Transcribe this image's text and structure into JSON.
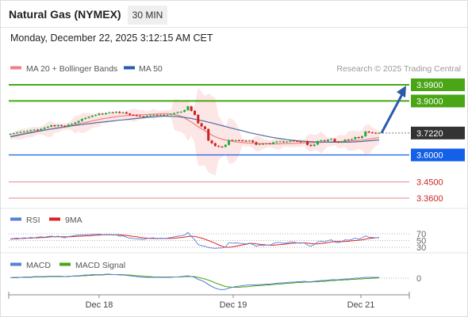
{
  "header": {
    "title": "Natural Gas (NYMEX)",
    "timeframe": "30 MIN",
    "datetime": "Monday, December 22, 2025 3:12:15 AM CET"
  },
  "legend": {
    "ma20_label": "MA 20 + Bollinger Bands",
    "ma50_label": "MA 50",
    "copyright": "Research © 2025 Trading Central",
    "rsi_label": "RSI",
    "rsi_ma_label": "9MA",
    "macd_label": "MACD",
    "macd_signal_label": "MACD Signal"
  },
  "colors": {
    "up": "#22aa44",
    "down": "#cc2222",
    "ma20": "#f08080",
    "ma50": "#4a6fa5",
    "bollinger_fill": "#fde3e3",
    "resistance": "#4aa616",
    "support": "#1560e8",
    "support_secondary": "#e58a8a",
    "current": "#333333",
    "arrow": "#2a5aa8",
    "rsi": "#5b7fd8",
    "rsi_ma": "#dd2222",
    "macd": "#5b7fd8",
    "macd_signal": "#4aa616"
  },
  "chart_data": [
    {
      "type": "candlestick",
      "title": "Natural Gas (NYMEX)",
      "timeframe": "30 MIN",
      "x_ticks": [
        "Dec 18",
        "Dec 19",
        "Dec 21"
      ],
      "ylim": [
        3.33,
        4.02
      ],
      "close": [
        3.717,
        3.721,
        3.725,
        3.728,
        3.731,
        3.733,
        3.738,
        3.741,
        3.738,
        3.745,
        3.752,
        3.757,
        3.765,
        3.76,
        3.766,
        3.762,
        3.757,
        3.769,
        3.773,
        3.78,
        3.789,
        3.8,
        3.806,
        3.812,
        3.818,
        3.822,
        3.83,
        3.826,
        3.833,
        3.837,
        3.835,
        3.84,
        3.834,
        3.837,
        3.83,
        3.823,
        3.821,
        3.817,
        3.815,
        3.812,
        3.818,
        3.821,
        3.823,
        3.819,
        3.823,
        3.822,
        3.824,
        3.828,
        3.833,
        3.838,
        3.84,
        3.849,
        3.87,
        3.845,
        3.823,
        3.776,
        3.758,
        3.744,
        3.68,
        3.665,
        3.65,
        3.646,
        3.645,
        3.656,
        3.683,
        3.68,
        3.682,
        3.681,
        3.679,
        3.677,
        3.68,
        3.671,
        3.657,
        3.662,
        3.661,
        3.664,
        3.662,
        3.67,
        3.675,
        3.675,
        3.672,
        3.674,
        3.68,
        3.678,
        3.675,
        3.673,
        3.677,
        3.656,
        3.65,
        3.658,
        3.677,
        3.681,
        3.677,
        3.685,
        3.689,
        3.673,
        3.67,
        3.674,
        3.685,
        3.684,
        3.688,
        3.699,
        3.694,
        3.704,
        3.73,
        3.725,
        3.723,
        3.722,
        3.722
      ],
      "ma20": [
        3.703,
        3.707,
        3.711,
        3.715,
        3.719,
        3.723,
        3.726,
        3.73,
        3.733,
        3.736,
        3.739,
        3.742,
        3.745,
        3.748,
        3.751,
        3.754,
        3.757,
        3.761,
        3.765,
        3.769,
        3.773,
        3.777,
        3.781,
        3.785,
        3.789,
        3.793,
        3.797,
        3.801,
        3.804,
        3.807,
        3.81,
        3.813,
        3.815,
        3.817,
        3.819,
        3.82,
        3.821,
        3.822,
        3.823,
        3.824,
        3.825,
        3.826,
        3.827,
        3.828,
        3.829,
        3.83,
        3.83,
        3.828,
        3.825,
        3.821,
        3.815,
        3.806,
        3.795,
        3.783,
        3.77,
        3.757,
        3.745,
        3.734,
        3.722,
        3.711,
        3.701,
        3.694,
        3.688,
        3.683,
        3.679,
        3.676,
        3.673,
        3.671,
        3.669,
        3.667,
        3.666,
        3.665,
        3.664,
        3.663,
        3.663,
        3.663,
        3.662,
        3.662,
        3.662,
        3.662,
        3.663,
        3.663,
        3.664,
        3.664,
        3.665,
        3.666,
        3.667,
        3.667,
        3.668,
        3.669,
        3.67,
        3.67,
        3.671,
        3.672,
        3.673,
        3.674,
        3.674,
        3.675,
        3.676,
        3.677,
        3.679,
        3.68,
        3.681,
        3.683,
        3.685,
        3.688,
        3.691,
        3.694,
        3.698
      ],
      "ma50": [
        3.7,
        3.704,
        3.708,
        3.712,
        3.716,
        3.72,
        3.723,
        3.727,
        3.731,
        3.734,
        3.738,
        3.741,
        3.744,
        3.747,
        3.75,
        3.753,
        3.756,
        3.759,
        3.762,
        3.764,
        3.767,
        3.769,
        3.772,
        3.774,
        3.776,
        3.779,
        3.781,
        3.783,
        3.785,
        3.787,
        3.789,
        3.791,
        3.793,
        3.795,
        3.797,
        3.799,
        3.801,
        3.803,
        3.805,
        3.807,
        3.809,
        3.811,
        3.812,
        3.813,
        3.814,
        3.815,
        3.815,
        3.815,
        3.814,
        3.813,
        3.811,
        3.809,
        3.806,
        3.803,
        3.799,
        3.795,
        3.791,
        3.787,
        3.782,
        3.778,
        3.773,
        3.768,
        3.763,
        3.758,
        3.753,
        3.748,
        3.743,
        3.739,
        3.734,
        3.729,
        3.724,
        3.72,
        3.716,
        3.712,
        3.708,
        3.704,
        3.7,
        3.697,
        3.694,
        3.691,
        3.688,
        3.685,
        3.683,
        3.681,
        3.679,
        3.677,
        3.676,
        3.675,
        3.674,
        3.673,
        3.673,
        3.672,
        3.672,
        3.671,
        3.671,
        3.671,
        3.671,
        3.671,
        3.671,
        3.671,
        3.672,
        3.673,
        3.674,
        3.675,
        3.677,
        3.679,
        3.68,
        3.682,
        3.684
      ],
      "levels": [
        {
          "value": 3.99,
          "label": "3.9900",
          "role": "resistance"
        },
        {
          "value": 3.9,
          "label": "3.9000",
          "role": "resistance"
        },
        {
          "value": 3.722,
          "label": "3.7220",
          "role": "current"
        },
        {
          "value": 3.6,
          "label": "3.6000",
          "role": "support"
        },
        {
          "value": 3.45,
          "label": "3.4500",
          "role": "support_secondary"
        },
        {
          "value": 3.36,
          "label": "3.3600",
          "role": "support_secondary"
        }
      ],
      "legend": [
        "MA 20 + Bollinger Bands",
        "MA 50"
      ]
    },
    {
      "type": "line",
      "title": "",
      "legend": [
        "RSI",
        "9MA"
      ],
      "y_ticks": [
        70,
        50,
        30
      ],
      "ylim": [
        20,
        80
      ],
      "series": [
        {
          "name": "RSI",
          "values": [
            55,
            56,
            57,
            56,
            58,
            57,
            59,
            58,
            60,
            61,
            60,
            62,
            63,
            61,
            63,
            60,
            58,
            62,
            63,
            65,
            66,
            67,
            67,
            68,
            68,
            68,
            69,
            67,
            68,
            68,
            66,
            67,
            63,
            64,
            60,
            57,
            56,
            55,
            54,
            53,
            56,
            57,
            58,
            55,
            57,
            56,
            57,
            59,
            61,
            63,
            64,
            66,
            74,
            62,
            52,
            38,
            35,
            33,
            29,
            28,
            27,
            28,
            28,
            31,
            44,
            42,
            43,
            42,
            41,
            40,
            42,
            38,
            33,
            36,
            35,
            37,
            36,
            41,
            44,
            44,
            42,
            43,
            46,
            45,
            43,
            42,
            44,
            36,
            33,
            38,
            46,
            48,
            46,
            50,
            52,
            45,
            44,
            46,
            52,
            51,
            53,
            57,
            54,
            58,
            64,
            60,
            59,
            58,
            58
          ]
        },
        {
          "name": "9MA",
          "values": [
            54,
            55,
            55,
            56,
            56,
            57,
            57,
            58,
            58,
            59,
            59,
            60,
            61,
            61,
            61,
            61,
            61,
            61,
            61,
            62,
            63,
            63,
            64,
            64,
            65,
            66,
            66,
            67,
            67,
            67,
            67,
            67,
            67,
            66,
            65,
            64,
            62,
            61,
            59,
            58,
            57,
            56,
            56,
            56,
            56,
            56,
            56,
            56,
            57,
            58,
            59,
            60,
            62,
            63,
            62,
            60,
            57,
            54,
            50,
            46,
            42,
            37,
            33,
            30,
            30,
            31,
            33,
            35,
            37,
            39,
            41,
            41,
            40,
            39,
            38,
            37,
            36,
            36,
            37,
            38,
            39,
            40,
            41,
            42,
            43,
            43,
            43,
            42,
            41,
            40,
            40,
            41,
            42,
            44,
            46,
            47,
            47,
            47,
            47,
            48,
            49,
            50,
            51,
            52,
            54,
            56,
            57,
            58,
            59
          ]
        }
      ]
    },
    {
      "type": "line",
      "title": "",
      "legend": [
        "MACD",
        "MACD Signal"
      ],
      "y_ticks": [
        0
      ],
      "ylim": [
        -0.035,
        0.012
      ],
      "series": [
        {
          "name": "MACD",
          "values": [
            0.001,
            0.002,
            0.002,
            0.002,
            0.003,
            0.003,
            0.003,
            0.004,
            0.004,
            0.004,
            0.004,
            0.005,
            0.005,
            0.005,
            0.005,
            0.005,
            0.004,
            0.005,
            0.005,
            0.006,
            0.006,
            0.007,
            0.008,
            0.008,
            0.009,
            0.009,
            0.009,
            0.009,
            0.01,
            0.01,
            0.009,
            0.009,
            0.008,
            0.008,
            0.007,
            0.006,
            0.005,
            0.004,
            0.003,
            0.002,
            0.002,
            0.002,
            0.002,
            0.002,
            0.002,
            0.002,
            0.002,
            0.002,
            0.003,
            0.003,
            0.004,
            0.005,
            0.006,
            0.004,
            0.002,
            -0.003,
            -0.006,
            -0.01,
            -0.016,
            -0.021,
            -0.025,
            -0.028,
            -0.029,
            -0.028,
            -0.025,
            -0.023,
            -0.021,
            -0.02,
            -0.019,
            -0.018,
            -0.017,
            -0.017,
            -0.017,
            -0.016,
            -0.016,
            -0.015,
            -0.015,
            -0.014,
            -0.013,
            -0.012,
            -0.012,
            -0.011,
            -0.01,
            -0.01,
            -0.009,
            -0.009,
            -0.008,
            -0.009,
            -0.009,
            -0.008,
            -0.007,
            -0.006,
            -0.006,
            -0.005,
            -0.004,
            -0.004,
            -0.004,
            -0.003,
            -0.002,
            -0.002,
            -0.001,
            0.0,
            0.0,
            0.001,
            0.002,
            0.002,
            0.002,
            0.002,
            0.002
          ]
        },
        {
          "name": "MACD Signal",
          "values": [
            0.001,
            0.001,
            0.001,
            0.002,
            0.002,
            0.002,
            0.002,
            0.003,
            0.003,
            0.003,
            0.003,
            0.004,
            0.004,
            0.004,
            0.004,
            0.004,
            0.004,
            0.004,
            0.005,
            0.005,
            0.005,
            0.006,
            0.006,
            0.007,
            0.007,
            0.008,
            0.008,
            0.008,
            0.009,
            0.009,
            0.009,
            0.009,
            0.009,
            0.009,
            0.008,
            0.008,
            0.007,
            0.006,
            0.006,
            0.005,
            0.004,
            0.004,
            0.003,
            0.003,
            0.003,
            0.003,
            0.003,
            0.003,
            0.003,
            0.003,
            0.003,
            0.004,
            0.004,
            0.004,
            0.004,
            0.002,
            0.0,
            -0.002,
            -0.005,
            -0.008,
            -0.012,
            -0.015,
            -0.018,
            -0.021,
            -0.022,
            -0.023,
            -0.023,
            -0.023,
            -0.022,
            -0.022,
            -0.021,
            -0.02,
            -0.019,
            -0.019,
            -0.018,
            -0.017,
            -0.017,
            -0.016,
            -0.015,
            -0.015,
            -0.014,
            -0.013,
            -0.013,
            -0.012,
            -0.011,
            -0.011,
            -0.01,
            -0.01,
            -0.01,
            -0.009,
            -0.009,
            -0.008,
            -0.008,
            -0.007,
            -0.006,
            -0.006,
            -0.005,
            -0.005,
            -0.004,
            -0.004,
            -0.003,
            -0.003,
            -0.002,
            -0.002,
            -0.001,
            -0.001,
            0.0,
            0.0,
            0.001
          ]
        }
      ]
    }
  ]
}
